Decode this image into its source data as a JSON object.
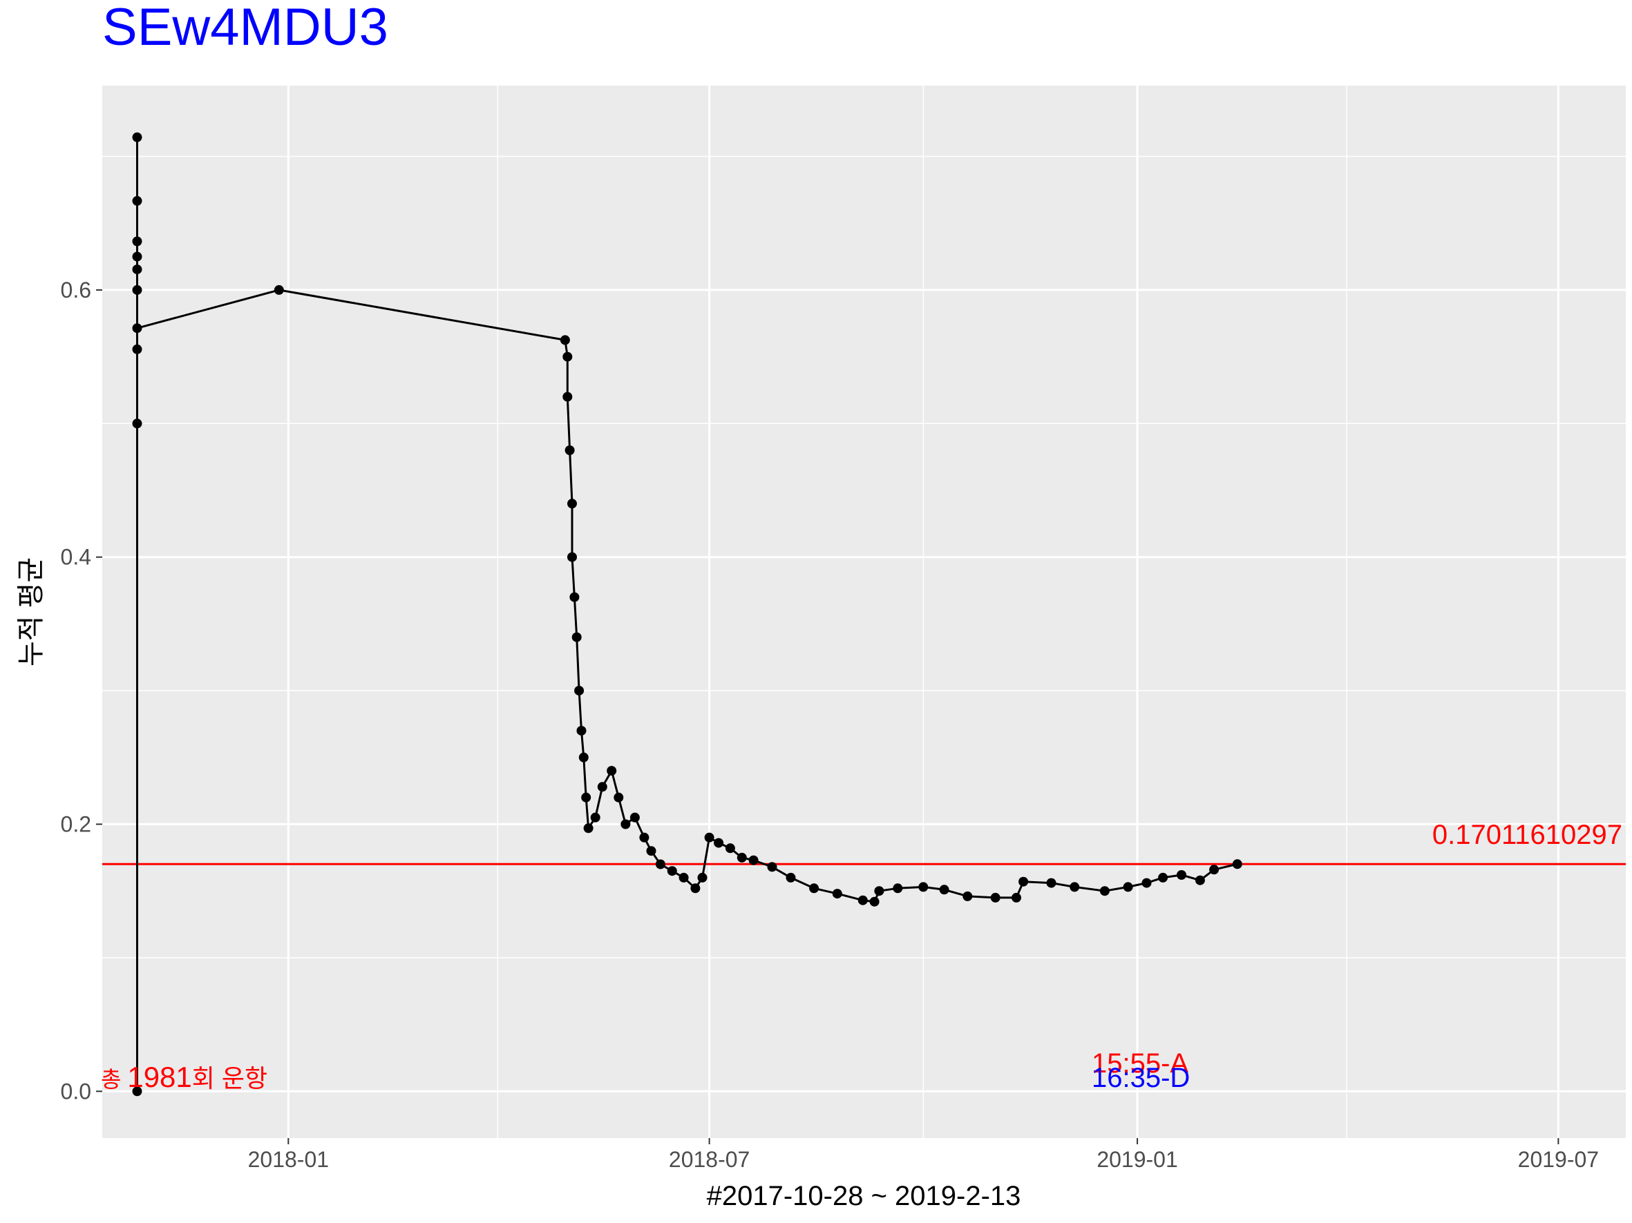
{
  "chart_data": {
    "type": "line",
    "title": "SEw4MDU3",
    "xlabel": "#2017-10-28 ~ 2019-2-13",
    "ylabel": "누적 평균",
    "x_ticks": [
      "2018-01",
      "2018-07",
      "2019-01",
      "2019-07"
    ],
    "y_ticks": [
      "0.0",
      "0.2",
      "0.4",
      "0.6"
    ],
    "xlim": [
      "2017-10-13",
      "2019-07-30"
    ],
    "ylim": [
      -0.035,
      0.753
    ],
    "grid": true,
    "series": [
      {
        "points": [
          [
            "2017-10-28",
            0.0
          ],
          [
            "2017-10-28",
            0.5
          ],
          [
            "2017-10-28",
            0.5556
          ],
          [
            "2017-10-28",
            0.6
          ],
          [
            "2017-10-28",
            0.6154
          ],
          [
            "2017-10-28",
            0.625
          ],
          [
            "2017-10-28",
            0.6364
          ],
          [
            "2017-10-28",
            0.6667
          ],
          [
            "2017-10-28",
            0.7143
          ],
          [
            "2017-10-28",
            0.5714
          ],
          [
            "2017-12-28",
            0.6
          ],
          [
            "2018-04-30",
            0.5625
          ],
          [
            "2018-05-01",
            0.55
          ],
          [
            "2018-05-01",
            0.52
          ],
          [
            "2018-05-02",
            0.48
          ],
          [
            "2018-05-03",
            0.44
          ],
          [
            "2018-05-03",
            0.4
          ],
          [
            "2018-05-04",
            0.37
          ],
          [
            "2018-05-05",
            0.34
          ],
          [
            "2018-05-06",
            0.3
          ],
          [
            "2018-05-07",
            0.27
          ],
          [
            "2018-05-08",
            0.25
          ],
          [
            "2018-05-09",
            0.22
          ],
          [
            "2018-05-10",
            0.197
          ],
          [
            "2018-05-13",
            0.205
          ],
          [
            "2018-05-16",
            0.228
          ],
          [
            "2018-05-20",
            0.24
          ],
          [
            "2018-05-23",
            0.22
          ],
          [
            "2018-05-26",
            0.2
          ],
          [
            "2018-05-30",
            0.205
          ],
          [
            "2018-06-03",
            0.19
          ],
          [
            "2018-06-06",
            0.18
          ],
          [
            "2018-06-10",
            0.17
          ],
          [
            "2018-06-15",
            0.165
          ],
          [
            "2018-06-20",
            0.16
          ],
          [
            "2018-06-25",
            0.152
          ],
          [
            "2018-06-28",
            0.16
          ],
          [
            "2018-07-01",
            0.19
          ],
          [
            "2018-07-05",
            0.186
          ],
          [
            "2018-07-10",
            0.182
          ],
          [
            "2018-07-15",
            0.175
          ],
          [
            "2018-07-20",
            0.173
          ],
          [
            "2018-07-28",
            0.168
          ],
          [
            "2018-08-05",
            0.16
          ],
          [
            "2018-08-15",
            0.152
          ],
          [
            "2018-08-25",
            0.148
          ],
          [
            "2018-09-05",
            0.143
          ],
          [
            "2018-09-10",
            0.142
          ],
          [
            "2018-09-12",
            0.15
          ],
          [
            "2018-09-20",
            0.152
          ],
          [
            "2018-10-01",
            0.153
          ],
          [
            "2018-10-10",
            0.151
          ],
          [
            "2018-10-20",
            0.146
          ],
          [
            "2018-11-01",
            0.145
          ],
          [
            "2018-11-10",
            0.145
          ],
          [
            "2018-11-13",
            0.157
          ],
          [
            "2018-11-25",
            0.156
          ],
          [
            "2018-12-05",
            0.153
          ],
          [
            "2018-12-18",
            0.15
          ],
          [
            "2018-12-28",
            0.153
          ],
          [
            "2019-01-05",
            0.156
          ],
          [
            "2019-01-12",
            0.16
          ],
          [
            "2019-01-20",
            0.162
          ],
          [
            "2019-01-28",
            0.158
          ],
          [
            "2019-02-03",
            0.166
          ],
          [
            "2019-02-13",
            0.1701
          ]
        ]
      }
    ],
    "hline": {
      "value": 0.17011610297,
      "label": "0.17011610297",
      "color": "#ff0000"
    },
    "annotations": {
      "count_prefix": "총 ",
      "count_value": "1981",
      "count_suffix": "회 운항",
      "arrival": "15:55-A",
      "departure": "16:35-D"
    },
    "colors": {
      "title": "#0000ff",
      "panel": "#ebebeb",
      "grid": "#ffffff",
      "line": "#000000",
      "red": "#ff0000",
      "blue": "#0000ff"
    }
  }
}
